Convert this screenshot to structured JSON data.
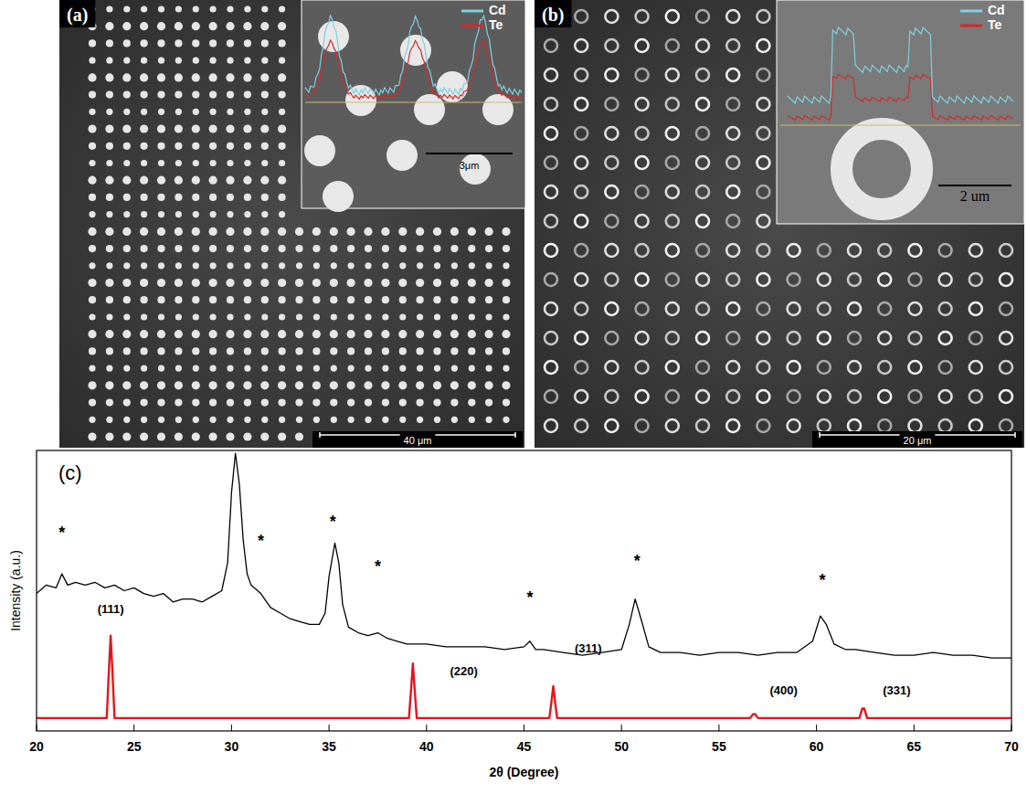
{
  "images": [
    {
      "label": "(a)",
      "scale_bar": "40 μm",
      "marker": "dot",
      "rows": 26,
      "cols": 25,
      "inset": {
        "scale_bar": "3μm",
        "legend": [
          {
            "name": "Cd",
            "color": "#7fd0e0"
          },
          {
            "name": "Te",
            "color": "#d42a2a"
          }
        ]
      }
    },
    {
      "label": "(b)",
      "scale_bar": "20 μm",
      "marker": "ring",
      "rows": 15,
      "cols": 16,
      "inset": {
        "scale_bar": "2 um",
        "legend": [
          {
            "name": "Cd",
            "color": "#7fd0e0"
          },
          {
            "name": "Te",
            "color": "#d42a2a"
          }
        ]
      }
    }
  ],
  "chart_data": {
    "type": "line",
    "label": "(c)",
    "x_label": "2θ (Degree)",
    "y_label": "Intensity (a.u.)",
    "xlim": [
      20,
      70
    ],
    "xticks": [
      20,
      25,
      30,
      35,
      40,
      45,
      50,
      55,
      60,
      65,
      70
    ],
    "ylim": [
      0,
      100
    ],
    "tick_labels": "x",
    "series": [
      {
        "color": "#000000",
        "x": [
          20,
          20.5,
          21,
          21.3,
          21.6,
          22,
          22.5,
          23,
          23.5,
          24,
          24.5,
          25,
          25.5,
          26,
          26.5,
          27,
          27.5,
          28,
          28.5,
          29,
          29.5,
          29.8,
          30,
          30.2,
          30.4,
          30.6,
          30.8,
          31,
          31.5,
          32,
          32.5,
          33,
          33.5,
          34,
          34.5,
          34.8,
          35,
          35.3,
          35.5,
          35.7,
          36,
          36.5,
          37,
          37.5,
          38,
          38.5,
          39,
          39.5,
          40,
          41,
          42,
          43,
          44,
          45,
          45.3,
          45.6,
          46,
          47,
          48,
          49,
          50,
          50.4,
          50.7,
          51,
          51.4,
          52,
          53,
          54,
          55,
          56,
          57,
          58,
          59,
          59.8,
          60.2,
          60.5,
          60.9,
          61.5,
          62,
          63,
          64,
          65,
          66,
          67,
          68,
          69,
          70
        ],
        "values": [
          49,
          52,
          51,
          56,
          52,
          53,
          52,
          53,
          51,
          52,
          50,
          51,
          49,
          48,
          49,
          46,
          47,
          47,
          46,
          48,
          50,
          60,
          85,
          99,
          88,
          68,
          56,
          52,
          49,
          44,
          42,
          40,
          39,
          38,
          38,
          42,
          55,
          67,
          60,
          45,
          37,
          35,
          34,
          35,
          33,
          32,
          31,
          31,
          31,
          30,
          30,
          30,
          29,
          30,
          32,
          29,
          29,
          28,
          27,
          28,
          29,
          38,
          47,
          40,
          30,
          28,
          28,
          27,
          28,
          28,
          27,
          28,
          28,
          32,
          41,
          38,
          31,
          29,
          29,
          28,
          27,
          27,
          28,
          27,
          27,
          26,
          26
        ]
      },
      {
        "color": "#e8141b",
        "x": [
          20,
          23.6,
          23.7,
          23.8,
          23.9,
          24.0,
          39.1,
          39.2,
          39.3,
          39.4,
          39.5,
          46.3,
          46.4,
          46.5,
          46.6,
          46.7,
          56.6,
          56.75,
          56.85,
          57,
          62.2,
          62.35,
          62.45,
          62.6,
          70
        ],
        "values": [
          4.6,
          4.6,
          20,
          34,
          20,
          4.6,
          4.6,
          14,
          24,
          14,
          4.6,
          4.6,
          10,
          16,
          10,
          4.6,
          4.6,
          6,
          6,
          4.6,
          4.6,
          8,
          8,
          4.6,
          4.6
        ]
      }
    ],
    "annotations": [
      {
        "text": "*",
        "x": 21.3,
        "y": 72
      },
      {
        "text": "*",
        "x": 31.5,
        "y": 69
      },
      {
        "text": "*",
        "x": 35.2,
        "y": 76
      },
      {
        "text": "*",
        "x": 37.5,
        "y": 60
      },
      {
        "text": "*",
        "x": 45.3,
        "y": 49
      },
      {
        "text": "*",
        "x": 50.8,
        "y": 62
      },
      {
        "text": "*",
        "x": 60.3,
        "y": 55
      },
      {
        "text": "(111)",
        "x": 23.8,
        "y": 42
      },
      {
        "text": "(220)",
        "x": 41.2,
        "y": 20
      },
      {
        "text": "(311)",
        "x": 47.6,
        "y": 28
      },
      {
        "text": "(400)",
        "x": 57.6,
        "y": 13
      },
      {
        "text": "(331)",
        "x": 63.4,
        "y": 13
      }
    ]
  }
}
